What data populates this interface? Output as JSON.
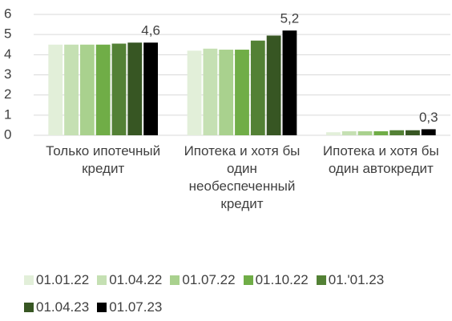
{
  "chart_data": {
    "type": "bar",
    "categories": [
      "Только ипотечный кредит",
      "Ипотека и хотя бы один необеспеченный кредит",
      "Ипотека и хотя бы один автокредит"
    ],
    "series": [
      {
        "name": "01.01.22",
        "color": "#e2efd9",
        "values": [
          4.5,
          4.2,
          0.15
        ]
      },
      {
        "name": "01.04.22",
        "color": "#c5e0b3",
        "values": [
          4.5,
          4.3,
          0.2
        ]
      },
      {
        "name": "01.07.22",
        "color": "#a9d18e",
        "values": [
          4.5,
          4.25,
          0.2
        ]
      },
      {
        "name": "01.10.22",
        "color": "#70ad47",
        "values": [
          4.5,
          4.25,
          0.2
        ]
      },
      {
        "name": "01.'01.23",
        "color": "#538135",
        "values": [
          4.55,
          4.7,
          0.25
        ]
      },
      {
        "name": "01.04.23",
        "color": "#375623",
        "values": [
          4.6,
          4.95,
          0.25
        ]
      },
      {
        "name": "01.07.23",
        "color": "#000000",
        "values": [
          4.6,
          5.2,
          0.3
        ],
        "value_labels": [
          "4,6",
          "5,2",
          "0,3"
        ]
      }
    ],
    "ylim": [
      0,
      6
    ],
    "yticks": [
      0,
      1,
      2,
      3,
      4,
      5,
      6
    ],
    "grid": true,
    "legend": "bottom"
  }
}
